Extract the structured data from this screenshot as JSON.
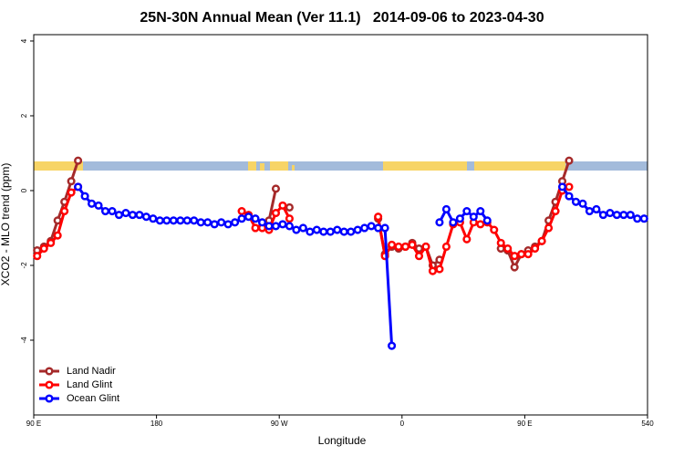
{
  "chart_data": {
    "type": "line",
    "title": "25N-30N Annual Mean (Ver 11.1)   2014-09-06 to 2023-04-30",
    "x_label": "Longitude",
    "y_label": "XCO2 - MLO trend (ppm)",
    "xlim": [
      90,
      540
    ],
    "ylim": [
      -6,
      4.17
    ],
    "xticks": [
      {
        "value": 90,
        "label": "90 E"
      },
      180,
      {
        "value": 270,
        "label": "90 W"
      },
      {
        "value": 360,
        "label": "0"
      },
      {
        "value": 450,
        "label": "90 E"
      },
      540
    ],
    "yticks": [
      -4,
      -2,
      0,
      2,
      4
    ],
    "legend": "bottom-left",
    "series": [
      {
        "name": "Land Nadir",
        "color": "#a52a2a",
        "x": [
          92.5,
          97.5,
          102.5,
          107.5,
          112.5,
          117.5,
          122.5,
          190,
          257.5,
          262.5,
          267.5,
          272.5,
          277.5,
          310,
          342.5,
          347.5,
          352.5,
          357.5,
          362.5,
          367.5,
          372.5,
          377.5,
          382.5,
          387.5,
          410,
          432.5,
          437.5,
          442.5,
          447.5,
          452.5,
          457.5,
          462.5,
          467.5,
          472.5,
          477.5,
          482.5
        ],
        "values": [
          -1.6,
          -1.5,
          -1.35,
          -0.8,
          -0.3,
          0.25,
          0.8,
          null,
          -0.95,
          -0.8,
          0.05,
          null,
          -0.45,
          null,
          -0.75,
          -1.7,
          -1.5,
          -1.55,
          -1.5,
          -1.4,
          -1.55,
          -1.5,
          -2.0,
          -1.85,
          null,
          -1.55,
          -1.6,
          -2.05,
          -1.7,
          -1.6,
          -1.5,
          -1.35,
          -0.8,
          -0.3,
          0.25,
          0.8
        ]
      },
      {
        "name": "Land Glint",
        "color": "#ff0000",
        "x": [
          92.5,
          97.5,
          102.5,
          107.5,
          112.5,
          117.5,
          122.5,
          190,
          242.5,
          247.5,
          252.5,
          257.5,
          262.5,
          267.5,
          272.5,
          277.5,
          310,
          342.5,
          347.5,
          352.5,
          357.5,
          362.5,
          367.5,
          372.5,
          377.5,
          382.5,
          387.5,
          392.5,
          397.5,
          402.5,
          407.5,
          412.5,
          417.5,
          422.5,
          427.5,
          432.5,
          437.5,
          442.5,
          447.5,
          452.5,
          457.5,
          462.5,
          467.5,
          472.5,
          477.5,
          482.5
        ],
        "values": [
          -1.75,
          -1.55,
          -1.4,
          -1.2,
          -0.55,
          -0.05,
          0.1,
          null,
          -0.55,
          -0.65,
          -1.0,
          -1.0,
          -1.05,
          -0.6,
          -0.4,
          -0.75,
          null,
          -0.7,
          -1.75,
          -1.45,
          -1.5,
          -1.5,
          -1.45,
          -1.75,
          -1.5,
          -2.15,
          -2.1,
          -1.5,
          -0.9,
          -0.85,
          -1.3,
          -0.85,
          -0.9,
          -0.85,
          -1.05,
          -1.4,
          -1.55,
          -1.75,
          -1.7,
          -1.7,
          -1.55,
          -1.35,
          -1.0,
          -0.55,
          0.0,
          0.1
        ]
      },
      {
        "name": "Ocean Glint",
        "color": "#0000ff",
        "x": [
          122.5,
          127.5,
          132.5,
          137.5,
          142.5,
          147.5,
          152.5,
          157.5,
          162.5,
          167.5,
          172.5,
          177.5,
          182.5,
          187.5,
          192.5,
          197.5,
          202.5,
          207.5,
          212.5,
          217.5,
          222.5,
          227.5,
          232.5,
          237.5,
          242.5,
          247.5,
          252.5,
          257.5,
          262.5,
          267.5,
          272.5,
          277.5,
          282.5,
          287.5,
          292.5,
          297.5,
          302.5,
          307.5,
          312.5,
          317.5,
          322.5,
          327.5,
          332.5,
          337.5,
          342.5,
          347.5,
          352.5,
          370,
          387.5,
          392.5,
          397.5,
          402.5,
          407.5,
          412.5,
          417.5,
          422.5,
          450,
          477.5,
          482.5,
          487.5,
          492.5,
          497.5,
          502.5,
          507.5,
          512.5,
          517.5,
          522.5,
          527.5,
          532.5,
          537.5
        ],
        "values": [
          0.1,
          -0.15,
          -0.35,
          -0.4,
          -0.55,
          -0.55,
          -0.65,
          -0.6,
          -0.65,
          -0.65,
          -0.7,
          -0.75,
          -0.8,
          -0.8,
          -0.8,
          -0.8,
          -0.8,
          -0.8,
          -0.85,
          -0.85,
          -0.9,
          -0.85,
          -0.9,
          -0.85,
          -0.75,
          -0.7,
          -0.75,
          -0.85,
          -0.95,
          -0.95,
          -0.9,
          -0.95,
          -1.05,
          -1.0,
          -1.1,
          -1.05,
          -1.1,
          -1.1,
          -1.05,
          -1.1,
          -1.1,
          -1.05,
          -1.0,
          -0.95,
          -1.0,
          -1.0,
          -4.15,
          null,
          -0.85,
          -0.5,
          -0.85,
          -0.75,
          -0.55,
          -0.7,
          -0.55,
          -0.8,
          null,
          0.1,
          -0.15,
          -0.3,
          -0.35,
          -0.55,
          -0.5,
          -0.65,
          -0.6,
          -0.65,
          -0.65,
          -0.65,
          -0.75,
          -0.75
        ]
      }
    ]
  }
}
